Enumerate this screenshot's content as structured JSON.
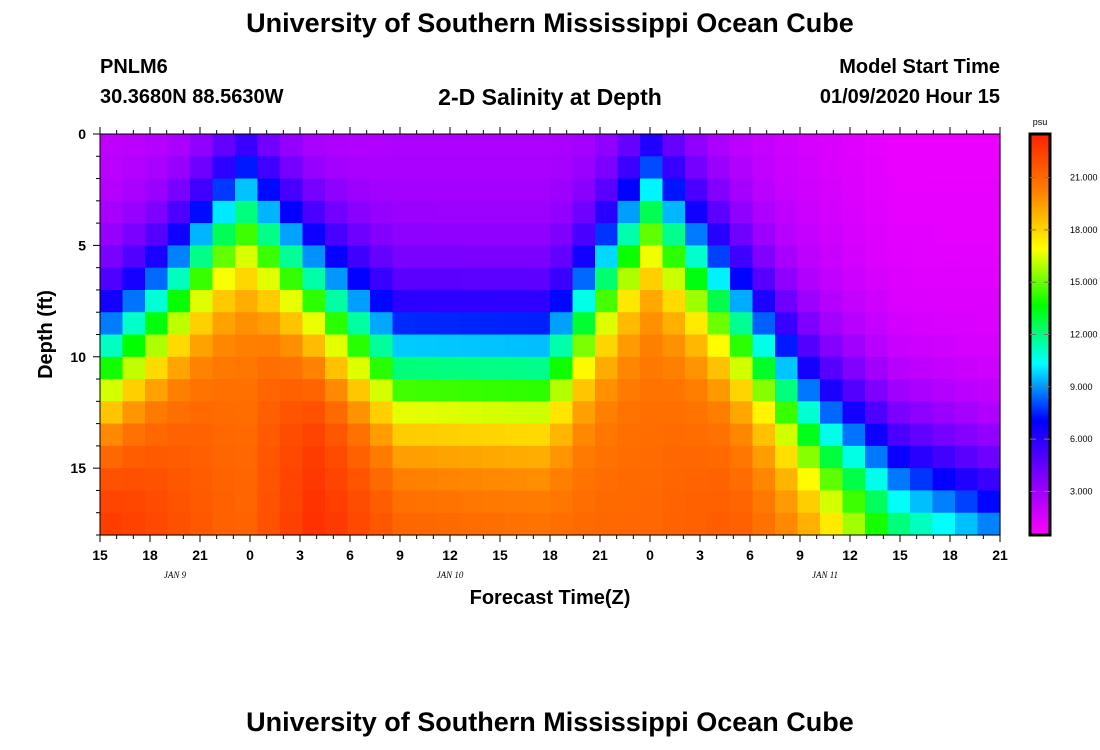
{
  "header": {
    "title": "University of Southern Mississippi Ocean Cube",
    "station_id": "PNLM6",
    "station_coords": "30.3680N 88.5630W",
    "chart_title": "2-D Salinity at Depth",
    "model_start_label": "Model Start Time",
    "model_start_value": "01/09/2020 Hour 15"
  },
  "footer": {
    "title": "University of Southern Mississippi Ocean Cube"
  },
  "chart_data": {
    "type": "heatmap",
    "title": "2-D Salinity at Depth",
    "xlabel": "Forecast Time(Z)",
    "ylabel": "Depth (ft)",
    "x_range_hours": [
      0,
      54
    ],
    "y_range_ft": [
      0,
      18
    ],
    "x_tick_labels": [
      "15",
      "18",
      "21",
      "0",
      "3",
      "6",
      "9",
      "12",
      "15",
      "18",
      "21",
      "0",
      "3",
      "6",
      "9",
      "12",
      "15",
      "18",
      "21"
    ],
    "y_tick_labels": [
      "0",
      "5",
      "10",
      "15"
    ],
    "y_tick_values": [
      0,
      5,
      10,
      15
    ],
    "date_labels": [
      {
        "text": "JAN  9",
        "hour": 4.5
      },
      {
        "text": "JAN  10",
        "hour": 21
      },
      {
        "text": "JAN  11",
        "hour": 43.5
      }
    ],
    "colorbar": {
      "units": "psu",
      "ticks": [
        3,
        6,
        9,
        12,
        15,
        18,
        21
      ],
      "tick_labels": [
        "3.000",
        "6.000",
        "9.000",
        "12.000",
        "15.000",
        "18.000",
        "21.000"
      ],
      "min": 0.5,
      "max": 23.5,
      "colors": [
        "#ff00ff",
        "#8000ff",
        "#0000ff",
        "#00ffff",
        "#00ff00",
        "#ffff00",
        "#ff8000",
        "#ff2000"
      ]
    },
    "depth_profile_keyframes": [
      {
        "hour": 0,
        "surface": 2,
        "bottom": 22.5,
        "halocline_ft": 10.5
      },
      {
        "hour": 4,
        "surface": 2,
        "bottom": 21.5,
        "halocline_ft": 7.5
      },
      {
        "hour": 8.5,
        "surface": 2,
        "bottom": 20.5,
        "halocline_ft": 3
      },
      {
        "hour": 13,
        "surface": 2,
        "bottom": 22.5,
        "halocline_ft": 7
      },
      {
        "hour": 18,
        "surface": 2.5,
        "bottom": 21,
        "halocline_ft": 10.5
      },
      {
        "hour": 27,
        "surface": 2.5,
        "bottom": 20.5,
        "halocline_ft": 10.5
      },
      {
        "hour": 33,
        "surface": 2.5,
        "bottom": 20.5,
        "halocline_ft": 3
      },
      {
        "hour": 38,
        "surface": 2,
        "bottom": 21,
        "halocline_ft": 8
      },
      {
        "hour": 43,
        "surface": 1.5,
        "bottom": 19.5,
        "halocline_ft": 13
      },
      {
        "hour": 48,
        "surface": 1,
        "bottom": 15,
        "halocline_ft": 15.5
      },
      {
        "hour": 54,
        "surface": 1,
        "bottom": 13,
        "halocline_ft": 17
      }
    ],
    "grid": false
  }
}
